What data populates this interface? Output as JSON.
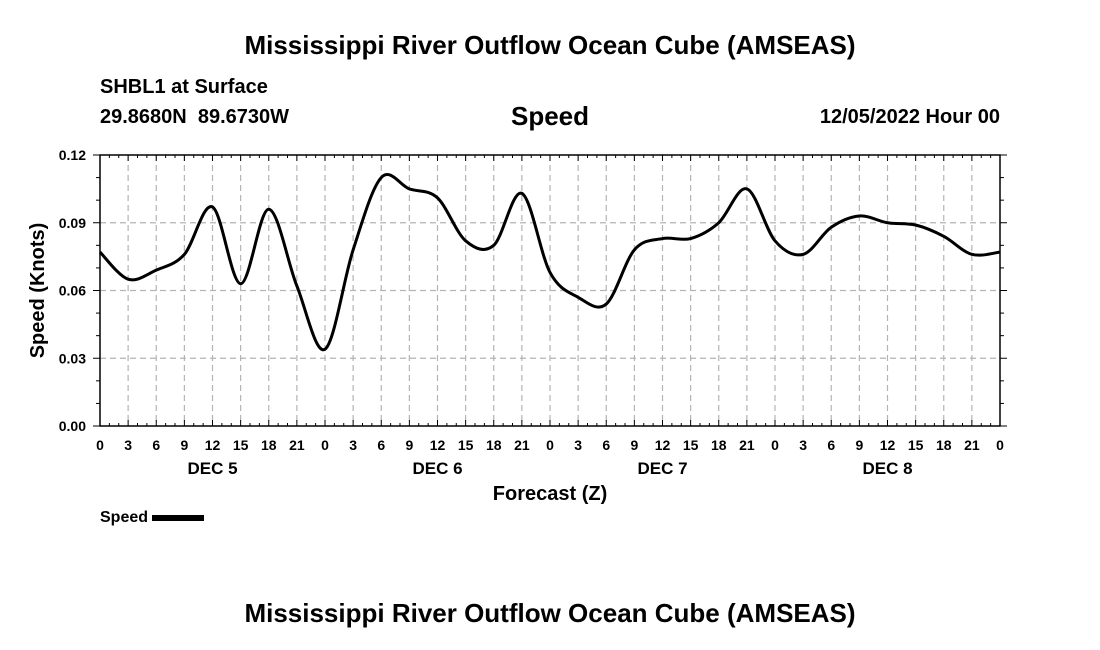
{
  "header": {
    "title": "Mississippi River Outflow Ocean Cube (AMSEAS)",
    "station": "SHBL1 at Surface",
    "coords": "29.8680N  89.6730W",
    "chart_title": "Speed",
    "datetime": "12/05/2022 Hour 00"
  },
  "legend": {
    "label": "Speed"
  },
  "footer": {
    "title": "Mississippi River Outflow Ocean Cube (AMSEAS)"
  },
  "chart_data": {
    "type": "line",
    "title": "Speed",
    "xlabel": "Forecast (Z)",
    "ylabel": "Speed (Knots)",
    "ylim": [
      0,
      0.12
    ],
    "xlim": [
      0,
      96
    ],
    "yticks": [
      "0.00",
      "0.03",
      "0.06",
      "0.09",
      "0.12"
    ],
    "ytick_values": [
      0,
      0.03,
      0.06,
      0.09,
      0.12
    ],
    "xtick_labels": [
      "0",
      "3",
      "6",
      "9",
      "12",
      "15",
      "18",
      "21",
      "0",
      "3",
      "6",
      "9",
      "12",
      "15",
      "18",
      "21",
      "0",
      "3",
      "6",
      "9",
      "12",
      "15",
      "18",
      "21",
      "0",
      "3",
      "6",
      "9",
      "12",
      "15",
      "18",
      "21",
      "0"
    ],
    "day_labels": [
      {
        "label": "DEC 5",
        "hour": 12
      },
      {
        "label": "DEC 6",
        "hour": 36
      },
      {
        "label": "DEC 7",
        "hour": 60
      },
      {
        "label": "DEC 8",
        "hour": 84
      }
    ],
    "grid": true,
    "series": [
      {
        "name": "Speed",
        "color": "#000000",
        "x": [
          0,
          3,
          6,
          9,
          12,
          15,
          18,
          21,
          24,
          27,
          30,
          33,
          36,
          39,
          42,
          45,
          48,
          51,
          54,
          57,
          60,
          63,
          66,
          69,
          72,
          75,
          78,
          81,
          84,
          87,
          90,
          93,
          96
        ],
        "values": [
          0.077,
          0.065,
          0.069,
          0.076,
          0.097,
          0.063,
          0.096,
          0.062,
          0.034,
          0.078,
          0.11,
          0.105,
          0.101,
          0.082,
          0.08,
          0.103,
          0.068,
          0.057,
          0.054,
          0.078,
          0.083,
          0.083,
          0.09,
          0.105,
          0.082,
          0.076,
          0.088,
          0.093,
          0.09,
          0.089,
          0.084,
          0.076,
          0.077
        ]
      }
    ]
  }
}
